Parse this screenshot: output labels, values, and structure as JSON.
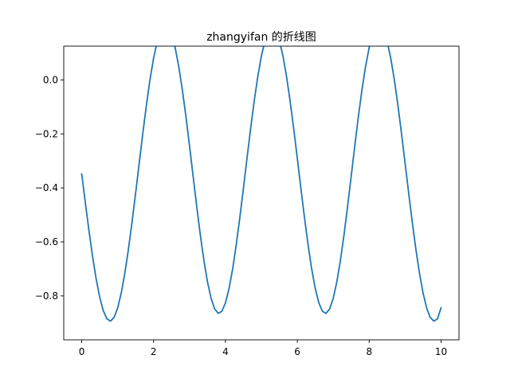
{
  "chart_data": {
    "type": "line",
    "title": "zhangyifan  的折线图",
    "xlabel": "",
    "ylabel": "",
    "xlim": [
      -0.5,
      10.5
    ],
    "ylim": [
      -0.9625,
      0.125
    ],
    "grid": false,
    "legend": "none",
    "line_color": "#1f77b4",
    "xticks": [
      0,
      2,
      4,
      6,
      8,
      10
    ],
    "xtick_labels": [
      "0",
      "2",
      "4",
      "6",
      "8",
      "10"
    ],
    "yticks": [
      0.0,
      -0.2,
      -0.4,
      -0.6,
      -0.8
    ],
    "ytick_labels": [
      "0.0",
      "−0.2",
      "−0.4",
      "−0.6",
      "−0.8"
    ],
    "series": [
      {
        "x": [
          0.0,
          0.1,
          0.2,
          0.3,
          0.4,
          0.5,
          0.6,
          0.7,
          0.8,
          0.9,
          1.0,
          1.1,
          1.2,
          1.3,
          1.4,
          1.5,
          1.6,
          1.7,
          1.8,
          1.9,
          2.0,
          2.1,
          2.2,
          2.3,
          2.4,
          2.5,
          2.6,
          2.7,
          2.8,
          2.9,
          3.0,
          3.1,
          3.2,
          3.3,
          3.4,
          3.5,
          3.6,
          3.7,
          3.8,
          3.9,
          4.0,
          4.1,
          4.2,
          4.3,
          4.4,
          4.5,
          4.6,
          4.7,
          4.8,
          4.9,
          5.0,
          5.1,
          5.2,
          5.3,
          5.4,
          5.5,
          5.6,
          5.7,
          5.8,
          5.9,
          6.0,
          6.1,
          6.2,
          6.3,
          6.4,
          6.5,
          6.6,
          6.7,
          6.8,
          6.9,
          7.0,
          7.1,
          7.2,
          7.3,
          7.4,
          7.5,
          7.6,
          7.7,
          7.8,
          7.9,
          8.0,
          8.1,
          8.2,
          8.3,
          8.4,
          8.5,
          8.6,
          8.7,
          8.8,
          8.9,
          9.0,
          9.1,
          9.2,
          9.3,
          9.4,
          9.5,
          9.6,
          9.7,
          9.8,
          9.9,
          10.0
        ],
        "y": [
          -0.3483,
          -0.4539,
          -0.5566,
          -0.6519,
          -0.7357,
          -0.8043,
          -0.8547,
          -0.8849,
          -0.8934,
          -0.8798,
          -0.8447,
          -0.7893,
          -0.7158,
          -0.6272,
          -0.527,
          -0.4193,
          -0.3083,
          -0.1985,
          -0.094,
          0.0007,
          0.0807,
          0.1426,
          0.1836,
          0.2021,
          0.1973,
          0.1694,
          0.1196,
          0.0501,
          -0.0362,
          -0.1355,
          -0.2438,
          -0.3562,
          -0.4678,
          -0.5734,
          -0.6682,
          -0.7478,
          -0.8087,
          -0.8481,
          -0.8643,
          -0.8567,
          -0.8258,
          -0.7728,
          -0.7001,
          -0.6112,
          -0.5102,
          -0.4016,
          -0.2902,
          -0.1811,
          -0.0789,
          0.0122,
          0.088,
          0.1449,
          0.1803,
          0.1926,
          0.181,
          0.146,
          0.0891,
          0.0129,
          -0.0788,
          -0.1811,
          -0.2902,
          -0.4016,
          -0.5102,
          -0.6112,
          -0.7001,
          -0.7728,
          -0.8258,
          -0.8567,
          -0.8643,
          -0.8481,
          -0.8087,
          -0.7478,
          -0.6682,
          -0.5734,
          -0.4678,
          -0.3562,
          -0.2438,
          -0.1355,
          -0.0362,
          0.0501,
          0.1196,
          0.1694,
          0.1973,
          0.2021,
          0.1836,
          0.1426,
          0.0807,
          0.0007,
          -0.094,
          -0.1985,
          -0.3083,
          -0.4193,
          -0.527,
          -0.6272,
          -0.7158,
          -0.7893,
          -0.8447,
          -0.8798,
          -0.8934,
          -0.8849,
          -0.8442
        ]
      }
    ]
  }
}
